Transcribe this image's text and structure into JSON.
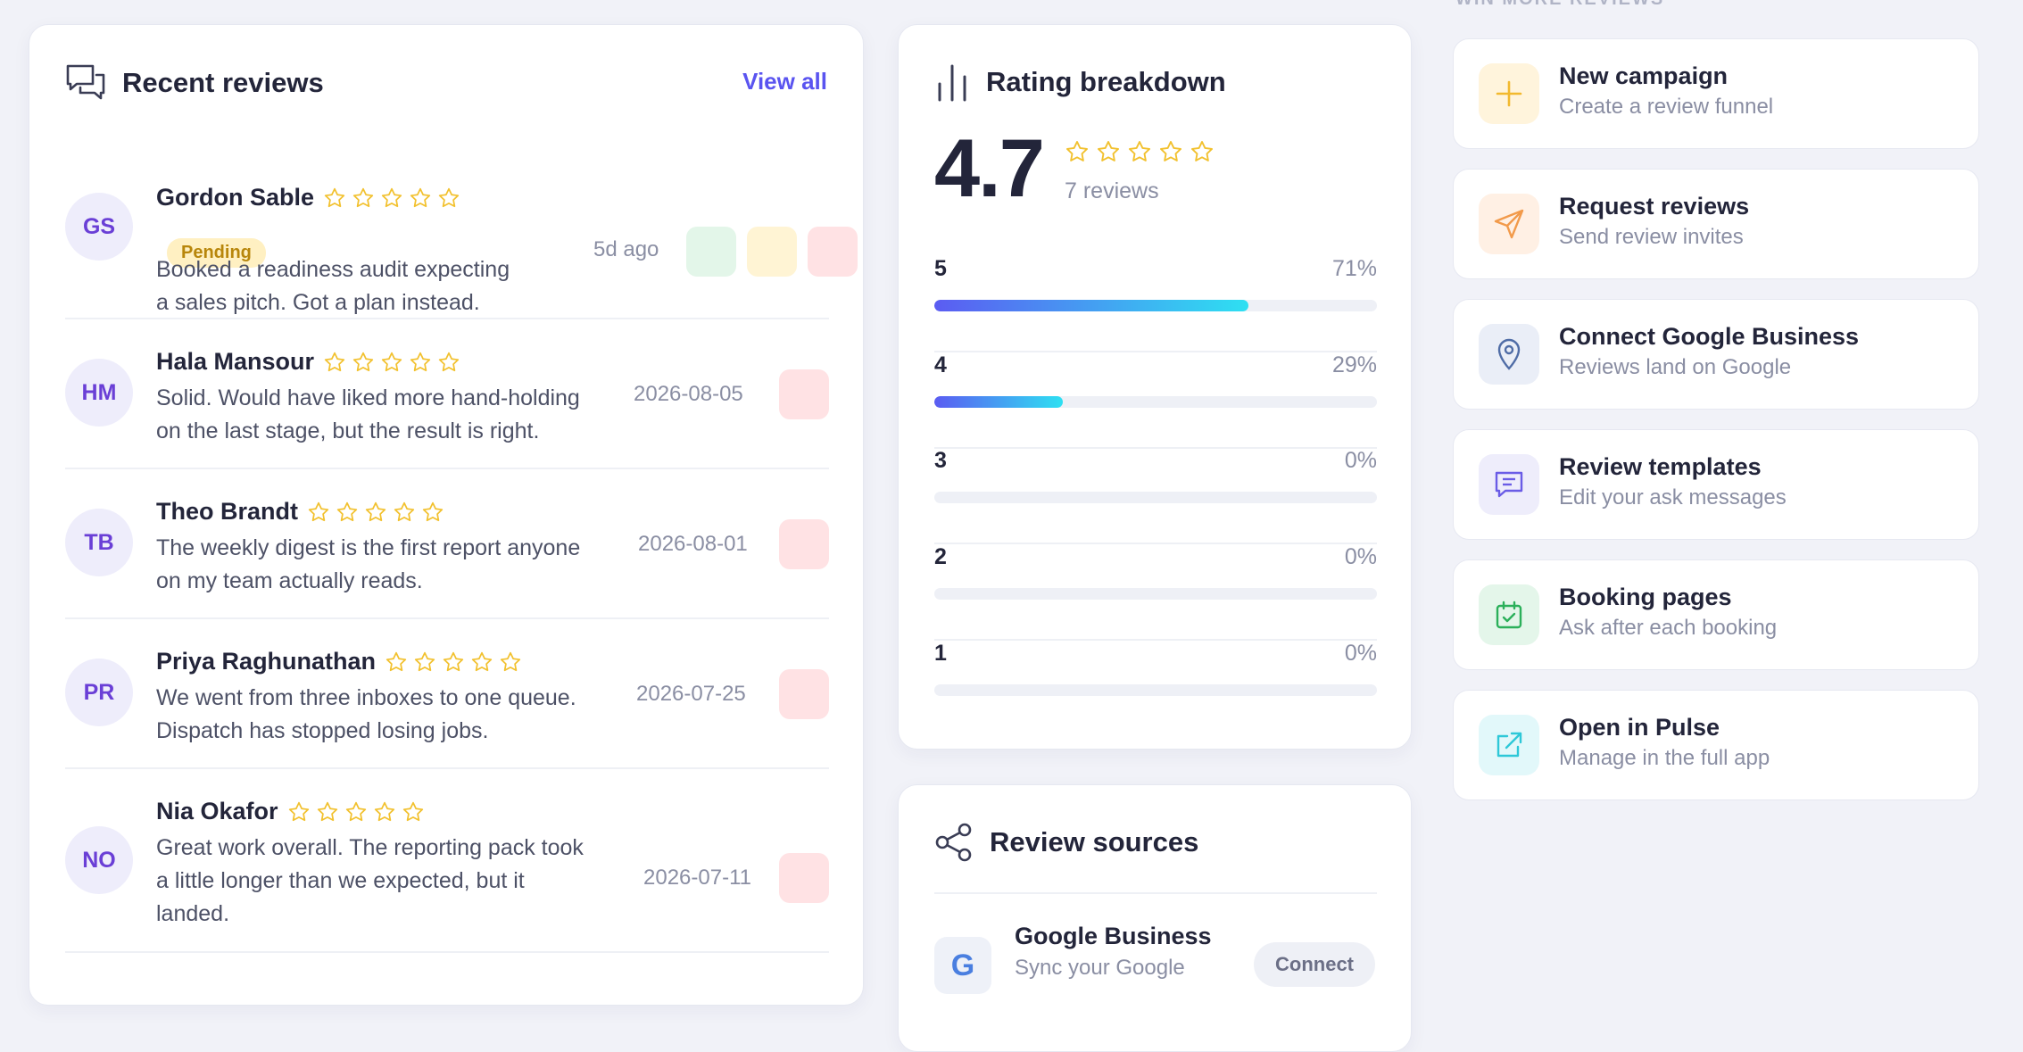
{
  "recent_reviews": {
    "title": "Recent reviews",
    "view_all_label": "View all",
    "items": [
      {
        "initials": "GS",
        "name": "Gordon Sable",
        "stars": 5,
        "badge": "Pending",
        "text_lines": [
          "Booked a readiness audit expecting",
          "a sales pitch. Got a plan instead."
        ],
        "date": "5d ago"
      },
      {
        "initials": "HM",
        "name": "Hala Mansour",
        "stars": 5,
        "text_lines": [
          "Solid. Would have liked more hand-holding",
          "on the last stage, but the result is right."
        ],
        "date": "2026-08-05"
      },
      {
        "initials": "TB",
        "name": "Theo Brandt",
        "stars": 5,
        "text_lines": [
          "The weekly digest is the first report anyone",
          "on my team actually reads."
        ],
        "date": "2026-08-01"
      },
      {
        "initials": "PR",
        "name": "Priya Raghunathan",
        "stars": 5,
        "text_lines": [
          "We went from three inboxes to one queue.",
          "Dispatch has stopped losing jobs."
        ],
        "date": "2026-07-25"
      },
      {
        "initials": "NO",
        "name": "Nia Okafor",
        "stars": 5,
        "text_lines": [
          "Great work overall. The reporting pack took",
          "a little longer than we expected, but it",
          "landed."
        ],
        "date": "2026-07-11"
      }
    ]
  },
  "rating_breakdown": {
    "title": "Rating breakdown",
    "average": "4.7",
    "stars": 5,
    "count_label": "7 reviews",
    "rows": [
      {
        "label": "5",
        "pct_label": "71%",
        "fraction": 0.71
      },
      {
        "label": "4",
        "pct_label": "29%",
        "fraction": 0.29
      },
      {
        "label": "3",
        "pct_label": "0%",
        "fraction": 0
      },
      {
        "label": "2",
        "pct_label": "0%",
        "fraction": 0
      },
      {
        "label": "1",
        "pct_label": "0%",
        "fraction": 0
      }
    ]
  },
  "review_sources": {
    "title": "Review sources",
    "google": {
      "icon_letter": "G",
      "name": "Google Business",
      "subtitle": "Sync your Google",
      "button_label": "Connect"
    }
  },
  "win_more": {
    "section_label": "WIN MORE REVIEWS",
    "actions": [
      {
        "icon": "plus-icon",
        "title": "New campaign",
        "subtitle": "Create a review funnel",
        "icon_bg": "#fff4dc",
        "icon_color": "#f2b92e"
      },
      {
        "icon": "send-icon",
        "title": "Request reviews",
        "subtitle": "Send review invites",
        "icon_bg": "#fff0e4",
        "icon_color": "#f29a4a"
      },
      {
        "icon": "map-pin-icon",
        "title": "Connect Google Business",
        "subtitle": "Reviews land on Google",
        "icon_bg": "#eaeef7",
        "icon_color": "#4f6ca6"
      },
      {
        "icon": "message-icon",
        "title": "Review templates",
        "subtitle": "Edit your ask messages",
        "icon_bg": "#eeedfb",
        "icon_color": "#6a5ce6"
      },
      {
        "icon": "calendar-check-icon",
        "title": "Booking pages",
        "subtitle": "Ask after each booking",
        "icon_bg": "#e4f6ea",
        "icon_color": "#2bb05a"
      },
      {
        "icon": "external-link-icon",
        "title": "Open in Pulse",
        "subtitle": "Manage in the full app",
        "icon_bg": "#e2f8fa",
        "icon_color": "#2ec8d8"
      }
    ]
  },
  "colors": {
    "accent": "#5a54f0",
    "star": "#f2c12e",
    "bar_start": "#5b5cf2",
    "bar_end": "#2ee0f2"
  }
}
